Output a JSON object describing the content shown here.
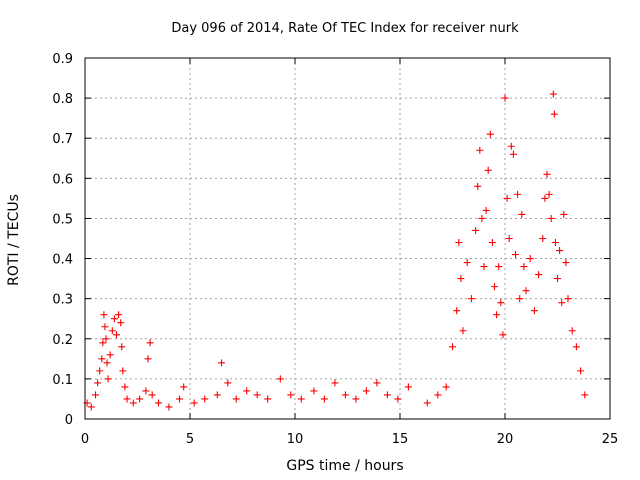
{
  "chart_data": {
    "type": "scatter",
    "title": "Day 096 of 2014, Rate Of TEC Index for receiver nurk",
    "xlabel": "GPS time / hours",
    "ylabel": "ROTI / TECUs",
    "xlim": [
      0,
      25
    ],
    "ylim": [
      0,
      0.9
    ],
    "x_ticks": [
      "0",
      "5",
      "10",
      "15",
      "20",
      "25"
    ],
    "y_ticks": [
      "0",
      "0.1",
      "0.2",
      "0.3",
      "0.4",
      "0.5",
      "0.6",
      "0.7",
      "0.8",
      "0.9"
    ],
    "grid": true,
    "marker": "+",
    "color": "#ff0000",
    "series": [
      {
        "points": [
          [
            0.1,
            0.04
          ],
          [
            0.3,
            0.03
          ],
          [
            0.5,
            0.06
          ],
          [
            0.6,
            0.09
          ],
          [
            0.7,
            0.12
          ],
          [
            0.8,
            0.15
          ],
          [
            0.85,
            0.19
          ],
          [
            0.9,
            0.26
          ],
          [
            0.95,
            0.23
          ],
          [
            1.0,
            0.2
          ],
          [
            1.05,
            0.14
          ],
          [
            1.1,
            0.1
          ],
          [
            1.2,
            0.16
          ],
          [
            1.3,
            0.22
          ],
          [
            1.4,
            0.25
          ],
          [
            1.5,
            0.21
          ],
          [
            1.6,
            0.26
          ],
          [
            1.7,
            0.24
          ],
          [
            1.75,
            0.18
          ],
          [
            1.8,
            0.12
          ],
          [
            1.9,
            0.08
          ],
          [
            2.0,
            0.05
          ],
          [
            2.3,
            0.04
          ],
          [
            2.6,
            0.05
          ],
          [
            2.9,
            0.07
          ],
          [
            3.0,
            0.15
          ],
          [
            3.1,
            0.19
          ],
          [
            3.2,
            0.06
          ],
          [
            3.5,
            0.04
          ],
          [
            4.0,
            0.03
          ],
          [
            4.5,
            0.05
          ],
          [
            4.7,
            0.08
          ],
          [
            5.2,
            0.04
          ],
          [
            5.7,
            0.05
          ],
          [
            6.3,
            0.06
          ],
          [
            6.5,
            0.14
          ],
          [
            6.8,
            0.09
          ],
          [
            7.2,
            0.05
          ],
          [
            7.7,
            0.07
          ],
          [
            8.2,
            0.06
          ],
          [
            8.7,
            0.05
          ],
          [
            9.3,
            0.1
          ],
          [
            9.8,
            0.06
          ],
          [
            10.3,
            0.05
          ],
          [
            10.9,
            0.07
          ],
          [
            11.4,
            0.05
          ],
          [
            11.9,
            0.09
          ],
          [
            12.4,
            0.06
          ],
          [
            12.9,
            0.05
          ],
          [
            13.4,
            0.07
          ],
          [
            13.9,
            0.09
          ],
          [
            14.4,
            0.06
          ],
          [
            14.9,
            0.05
          ],
          [
            15.4,
            0.08
          ],
          [
            16.3,
            0.04
          ],
          [
            16.8,
            0.06
          ],
          [
            17.2,
            0.08
          ],
          [
            17.5,
            0.18
          ],
          [
            17.7,
            0.27
          ],
          [
            17.8,
            0.44
          ],
          [
            17.9,
            0.35
          ],
          [
            18.0,
            0.22
          ],
          [
            18.2,
            0.39
          ],
          [
            18.4,
            0.3
          ],
          [
            18.6,
            0.47
          ],
          [
            18.7,
            0.58
          ],
          [
            18.8,
            0.67
          ],
          [
            18.9,
            0.5
          ],
          [
            19.0,
            0.38
          ],
          [
            19.1,
            0.52
          ],
          [
            19.2,
            0.62
          ],
          [
            19.3,
            0.71
          ],
          [
            19.4,
            0.44
          ],
          [
            19.5,
            0.33
          ],
          [
            19.6,
            0.26
          ],
          [
            19.7,
            0.38
          ],
          [
            19.8,
            0.29
          ],
          [
            19.9,
            0.21
          ],
          [
            20.0,
            0.8
          ],
          [
            20.1,
            0.55
          ],
          [
            20.2,
            0.45
          ],
          [
            20.3,
            0.68
          ],
          [
            20.4,
            0.66
          ],
          [
            20.5,
            0.41
          ],
          [
            20.6,
            0.56
          ],
          [
            20.7,
            0.3
          ],
          [
            20.8,
            0.51
          ],
          [
            20.9,
            0.38
          ],
          [
            21.0,
            0.32
          ],
          [
            21.2,
            0.4
          ],
          [
            21.4,
            0.27
          ],
          [
            21.6,
            0.36
          ],
          [
            21.8,
            0.45
          ],
          [
            21.9,
            0.55
          ],
          [
            22.0,
            0.61
          ],
          [
            22.1,
            0.56
          ],
          [
            22.2,
            0.5
          ],
          [
            22.3,
            0.81
          ],
          [
            22.35,
            0.76
          ],
          [
            22.4,
            0.44
          ],
          [
            22.5,
            0.35
          ],
          [
            22.6,
            0.42
          ],
          [
            22.7,
            0.29
          ],
          [
            22.8,
            0.51
          ],
          [
            22.9,
            0.39
          ],
          [
            23.0,
            0.3
          ],
          [
            23.2,
            0.22
          ],
          [
            23.4,
            0.18
          ],
          [
            23.6,
            0.12
          ],
          [
            23.8,
            0.06
          ]
        ]
      }
    ]
  }
}
